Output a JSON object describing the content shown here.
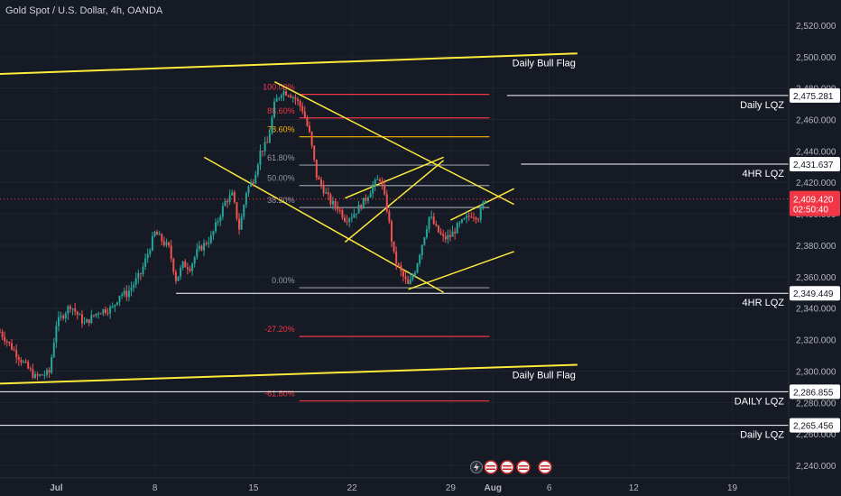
{
  "header": {
    "title": "Gold Spot / U.S. Dollar, 4h, OANDA"
  },
  "colors": {
    "background": "#161a25",
    "up": "#26a69a",
    "down": "#ef5350",
    "pattern": "#ffeb3b",
    "level": "#ffffff",
    "fib_red": "#f23645",
    "fib_orange": "#ffb300",
    "fib_grey": "#9598a1",
    "price_tag": "#f23645"
  },
  "price_tag": {
    "price": "2,409.420",
    "countdown": "02:50:40"
  },
  "current_price": 2409.42,
  "chart_data": {
    "type": "candlestick",
    "xaxis": {
      "ticks": [
        {
          "label": "Jul",
          "x": 0
        },
        {
          "label": "8",
          "x": 14
        },
        {
          "label": "15",
          "x": 28
        },
        {
          "label": "22",
          "x": 42
        },
        {
          "label": "29",
          "x": 56
        },
        {
          "label": "Aug",
          "x": 62
        },
        {
          "label": "6",
          "x": 70
        },
        {
          "label": "12",
          "x": 82
        },
        {
          "label": "19",
          "x": 96
        }
      ],
      "range": [
        -8,
        104
      ]
    },
    "yaxis": {
      "ticks": [
        "2,240.000",
        "2,260.000",
        "2,280.000",
        "2,300.000",
        "2,320.000",
        "2,340.000",
        "2,360.000",
        "2,380.000",
        "2,400.000",
        "2,420.000",
        "2,440.000",
        "2,460.000",
        "2,480.000",
        "2,500.000",
        "2,520.000"
      ],
      "range": [
        2232,
        2536
      ]
    },
    "series": [
      {
        "type": "candles",
        "path_x": [
          -8,
          -5,
          -3,
          -1,
          0,
          2,
          4,
          6,
          8,
          9,
          10,
          12,
          14,
          16,
          17,
          18,
          19,
          20,
          22,
          24,
          25,
          26,
          27,
          28,
          29,
          30,
          31,
          32,
          33,
          34,
          35,
          36,
          37,
          38,
          39,
          40,
          41,
          42,
          43,
          44,
          45,
          46,
          47,
          48,
          49,
          50,
          51,
          52,
          53,
          54,
          55,
          56,
          57,
          58,
          59,
          60,
          61
        ],
        "path_y": [
          2325,
          2307,
          2296,
          2299,
          2330,
          2342,
          2330,
          2338,
          2340,
          2349,
          2349,
          2362,
          2388,
          2378,
          2358,
          2368,
          2366,
          2376,
          2385,
          2408,
          2412,
          2390,
          2415,
          2422,
          2440,
          2445,
          2470,
          2478,
          2477,
          2473,
          2466,
          2450,
          2423,
          2415,
          2407,
          2404,
          2397,
          2399,
          2404,
          2410,
          2418,
          2423,
          2402,
          2372,
          2362,
          2354,
          2365,
          2382,
          2399,
          2390,
          2384,
          2386,
          2392,
          2396,
          2400,
          2398,
          2411
        ]
      }
    ],
    "annotations": [
      {
        "label": "Daily Bull Flag",
        "kind": "line",
        "x1": -8,
        "y1": 2489,
        "x2": 74,
        "y2": 2502,
        "label_pos": "above-right"
      },
      {
        "label": "Daily Bull Flag",
        "kind": "line",
        "x1": -8,
        "y1": 2292,
        "x2": 74,
        "y2": 2304,
        "label_pos": "below-right"
      }
    ],
    "levels": [
      {
        "label": "Daily LQZ",
        "price": 2475.281,
        "tag": "2,475.281",
        "x_start": 64
      },
      {
        "label": "4HR LQZ",
        "price": 2431.637,
        "tag": "2,431.637",
        "x_start": 66
      },
      {
        "label": "4HR LQZ",
        "price": 2349.449,
        "tag": "2,349.449",
        "x_start": 17
      },
      {
        "label": "DAILY LQZ",
        "price": 2286.855,
        "tag": "2,286.855",
        "x_start": -8
      },
      {
        "label": "Daily LQZ",
        "price": 2265.456,
        "tag": "2,265.456",
        "x_start": -8
      }
    ],
    "fibonacci": [
      {
        "label": "100.00%",
        "price": 2476,
        "color": "red"
      },
      {
        "label": "88.60%",
        "price": 2461,
        "color": "red"
      },
      {
        "label": "78.60%",
        "price": 2449,
        "color": "orange"
      },
      {
        "label": "61.80%",
        "price": 2431,
        "color": "grey"
      },
      {
        "label": "50.00%",
        "price": 2418,
        "color": "grey"
      },
      {
        "label": "38.20%",
        "price": 2404,
        "color": "grey"
      },
      {
        "label": "0.00%",
        "price": 2353,
        "color": "grey"
      },
      {
        "label": "-27.20%",
        "price": 2322,
        "color": "red"
      },
      {
        "label": "-61.80%",
        "price": 2281,
        "color": "red"
      }
    ],
    "channel_lines": [
      {
        "x1": 31,
        "y1": 2484,
        "x2": 65,
        "y2": 2406
      },
      {
        "x1": 21,
        "y1": 2436,
        "x2": 55,
        "y2": 2350
      },
      {
        "x1": 50,
        "y1": 2352,
        "x2": 65,
        "y2": 2376
      },
      {
        "x1": 56,
        "y1": 2396,
        "x2": 65,
        "y2": 2416
      },
      {
        "x1": 41,
        "y1": 2382,
        "x2": 55,
        "y2": 2434
      },
      {
        "x1": 41,
        "y1": 2410,
        "x2": 55,
        "y2": 2436
      }
    ]
  }
}
